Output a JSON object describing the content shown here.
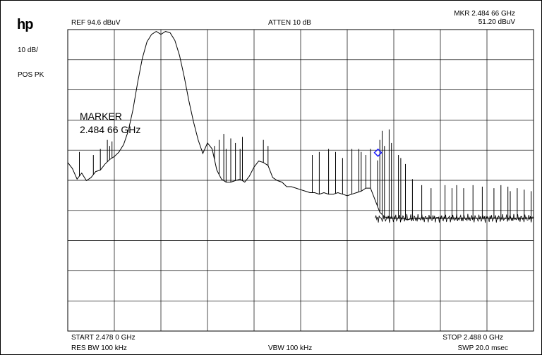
{
  "logo": "hp",
  "header": {
    "ref_level": "REF  94.6 dBuV",
    "attenuation": "ATTEN 10 dB",
    "marker_freq": "MKR 2.484 66 GHz",
    "marker_level": "51.20 dBuV"
  },
  "left_panel": {
    "scale": "10 dB/",
    "detector": "POS PK"
  },
  "marker_annotation": {
    "title": "MARKER",
    "freq": "2.484 66 GHz"
  },
  "footer": {
    "start": "START 2.478 0 GHz",
    "stop": "STOP 2.488 0 GHz",
    "rbw": "RES BW 100 kHz",
    "vbw": "VBW 100 kHz",
    "sweep": "SWP 20.0 msec"
  },
  "colors": {
    "trace": "#000000",
    "grid": "#000000",
    "marker": "#1a1aff"
  },
  "chart_data": {
    "type": "line",
    "title": "",
    "xlabel": "",
    "ylabel": "",
    "x_unit": "GHz",
    "y_unit": "dBuV",
    "xlim": [
      2.478,
      2.488
    ],
    "ylim": [
      -5.4,
      94.6
    ],
    "grid": true,
    "grid_divisions": {
      "x": 10,
      "y": 10
    },
    "marker": {
      "x": 2.48466,
      "y": 51.2
    },
    "envelope": [
      [
        2.478,
        50.5
      ],
      [
        2.4781,
        48.5
      ],
      [
        2.4782,
        45.0
      ],
      [
        2.4783,
        47.0
      ],
      [
        2.4784,
        44.5
      ],
      [
        2.4785,
        45.5
      ],
      [
        2.4786,
        47.5
      ],
      [
        2.4787,
        48.0
      ],
      [
        2.4788,
        50.0
      ],
      [
        2.4789,
        51.5
      ],
      [
        2.479,
        52.5
      ],
      [
        2.4791,
        54.0
      ],
      [
        2.4792,
        56.5
      ],
      [
        2.4793,
        61.0
      ],
      [
        2.4794,
        68.0
      ],
      [
        2.4795,
        77.0
      ],
      [
        2.4796,
        85.0
      ],
      [
        2.4797,
        90.5
      ],
      [
        2.4798,
        93.0
      ],
      [
        2.4799,
        94.0
      ],
      [
        2.48,
        93.0
      ],
      [
        2.4801,
        94.0
      ],
      [
        2.4802,
        93.5
      ],
      [
        2.4803,
        91.0
      ],
      [
        2.4804,
        86.0
      ],
      [
        2.4805,
        79.0
      ],
      [
        2.4806,
        71.0
      ],
      [
        2.4807,
        64.0
      ],
      [
        2.4808,
        58.0
      ],
      [
        2.4809,
        53.5
      ],
      [
        2.481,
        57.0
      ],
      [
        2.4811,
        55.0
      ],
      [
        2.4812,
        48.0
      ],
      [
        2.4813,
        45.0
      ],
      [
        2.4814,
        44.0
      ],
      [
        2.4815,
        44.0
      ],
      [
        2.4816,
        44.5
      ],
      [
        2.4817,
        45.0
      ],
      [
        2.4818,
        44.0
      ],
      [
        2.4819,
        46.0
      ],
      [
        2.482,
        49.0
      ],
      [
        2.4821,
        51.0
      ],
      [
        2.4822,
        50.5
      ],
      [
        2.4823,
        49.5
      ],
      [
        2.4824,
        45.5
      ],
      [
        2.4825,
        44.5
      ],
      [
        2.4826,
        44.0
      ],
      [
        2.4827,
        42.5
      ],
      [
        2.4828,
        42.5
      ],
      [
        2.4829,
        42.0
      ],
      [
        2.483,
        41.5
      ],
      [
        2.4831,
        41.0
      ],
      [
        2.4832,
        40.5
      ],
      [
        2.4833,
        40.5
      ],
      [
        2.4834,
        40.0
      ],
      [
        2.4835,
        40.5
      ],
      [
        2.4836,
        40.0
      ],
      [
        2.4837,
        40.0
      ],
      [
        2.4838,
        40.5
      ],
      [
        2.4839,
        40.0
      ],
      [
        2.484,
        39.5
      ],
      [
        2.4841,
        40.0
      ],
      [
        2.4842,
        40.5
      ],
      [
        2.4843,
        41.0
      ],
      [
        2.4844,
        42.0
      ],
      [
        2.4845,
        42.0
      ],
      [
        2.4846,
        38.0
      ],
      [
        2.4847,
        34.0
      ],
      [
        2.4848,
        32.5
      ],
      [
        2.4849,
        32.0
      ],
      [
        2.485,
        32.0
      ],
      [
        2.4851,
        32.0
      ],
      [
        2.4852,
        32.0
      ],
      [
        2.4853,
        31.5
      ],
      [
        2.4854,
        32.0
      ],
      [
        2.4855,
        32.0
      ],
      [
        2.4856,
        32.0
      ],
      [
        2.4857,
        32.0
      ],
      [
        2.4858,
        32.0
      ],
      [
        2.4859,
        32.0
      ],
      [
        2.486,
        32.0
      ],
      [
        2.4861,
        32.0
      ],
      [
        2.4862,
        32.0
      ],
      [
        2.4863,
        32.0
      ],
      [
        2.4864,
        32.0
      ],
      [
        2.4865,
        32.0
      ],
      [
        2.4866,
        32.0
      ],
      [
        2.4867,
        32.0
      ],
      [
        2.4868,
        32.0
      ],
      [
        2.4869,
        32.0
      ],
      [
        2.487,
        32.0
      ],
      [
        2.4871,
        32.0
      ],
      [
        2.4872,
        32.0
      ],
      [
        2.4873,
        32.0
      ],
      [
        2.4874,
        32.0
      ],
      [
        2.4875,
        32.0
      ],
      [
        2.4876,
        32.0
      ],
      [
        2.4877,
        32.0
      ],
      [
        2.4878,
        32.0
      ],
      [
        2.4879,
        32.0
      ],
      [
        2.488,
        32.0
      ]
    ],
    "spikes": [
      [
        2.47825,
        54.0
      ],
      [
        2.47855,
        53.0
      ],
      [
        2.4787,
        55.0
      ],
      [
        2.47885,
        58.0
      ],
      [
        2.4789,
        56.0
      ],
      [
        2.47895,
        57.5
      ],
      [
        2.48115,
        56.0
      ],
      [
        2.48125,
        58.0
      ],
      [
        2.48135,
        60.0
      ],
      [
        2.4814,
        55.0
      ],
      [
        2.4815,
        58.5
      ],
      [
        2.4816,
        57.0
      ],
      [
        2.4817,
        55.0
      ],
      [
        2.48175,
        59.0
      ],
      [
        2.4822,
        58.0
      ],
      [
        2.4823,
        56.0
      ],
      [
        2.48325,
        53.0
      ],
      [
        2.4834,
        54.0
      ],
      [
        2.4836,
        55.0
      ],
      [
        2.48375,
        54.0
      ],
      [
        2.4839,
        52.0
      ],
      [
        2.4841,
        55.0
      ],
      [
        2.48425,
        55.0
      ],
      [
        2.4843,
        54.0
      ],
      [
        2.4844,
        53.0
      ],
      [
        2.4845,
        55.0
      ],
      [
        2.48465,
        51.2
      ],
      [
        2.4847,
        58.0
      ],
      [
        2.48475,
        61.0
      ],
      [
        2.4848,
        56.0
      ],
      [
        2.4849,
        61.5
      ],
      [
        2.48495,
        57.0
      ],
      [
        2.4851,
        53.0
      ],
      [
        2.48515,
        52.0
      ],
      [
        2.48525,
        50.0
      ],
      [
        2.4854,
        45.0
      ],
      [
        2.4856,
        43.0
      ],
      [
        2.4858,
        42.0
      ],
      [
        2.4861,
        43.0
      ],
      [
        2.48625,
        42.0
      ],
      [
        2.48635,
        43.0
      ],
      [
        2.4865,
        42.0
      ],
      [
        2.4867,
        43.0
      ],
      [
        2.4869,
        42.5
      ],
      [
        2.48715,
        42.0
      ],
      [
        2.4873,
        43.0
      ],
      [
        2.48745,
        42.5
      ],
      [
        2.4875,
        41.0
      ],
      [
        2.48765,
        42.0
      ],
      [
        2.4878,
        41.5
      ],
      [
        2.48795,
        41.0
      ]
    ]
  }
}
